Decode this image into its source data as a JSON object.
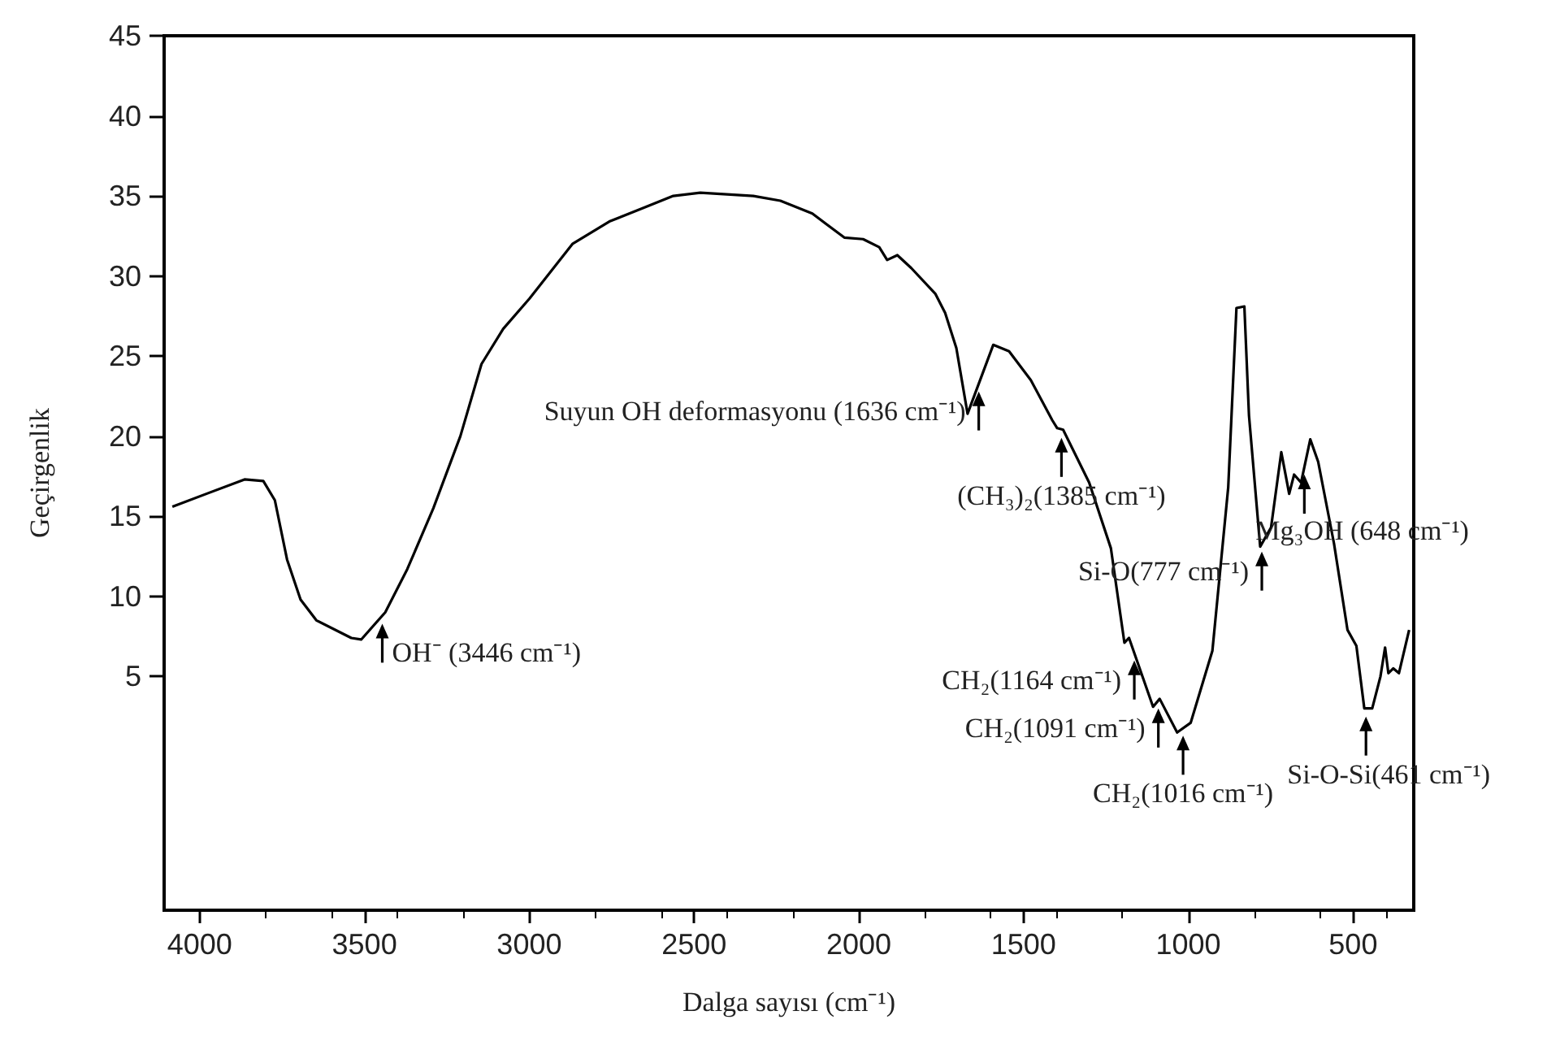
{
  "chart_data": {
    "type": "line",
    "xlabel": "Dalga sayısı (cm⁻¹)",
    "ylabel": "Geçirgenlik",
    "xlim": [
      4108,
      316
    ],
    "xticks": [
      4000,
      3500,
      3000,
      2500,
      2000,
      1500,
      1000,
      500
    ],
    "ylim": [
      -9.6,
      45
    ],
    "yticks": [
      5,
      10,
      15,
      20,
      25,
      30,
      35,
      40,
      45
    ],
    "grid": false,
    "marker": "none",
    "line_style": "solid",
    "series": [
      {
        "color": "#000000",
        "x": [
          4083,
          3864,
          3807,
          3772,
          3735,
          3694,
          3646,
          3540,
          3510,
          3437,
          3370,
          3291,
          3209,
          3145,
          3079,
          2999,
          2869,
          2757,
          2563,
          2481,
          2320,
          2238,
          2141,
          2044,
          1987,
          1938,
          1914,
          1883,
          1841,
          1768,
          1738,
          1704,
          1670,
          1592,
          1544,
          1478,
          1413,
          1398,
          1380,
          1301,
          1235,
          1194,
          1180,
          1107,
          1087,
          1034,
          993,
          927,
          879,
          854,
          830,
          816,
          782,
          749,
          718,
          694,
          679,
          658,
          630,
          606,
          558,
          517,
          490,
          466,
          442,
          417,
          403,
          393,
          378,
          361,
          330
        ],
        "values": [
          15.6,
          17.3,
          17.2,
          16.0,
          12.3,
          9.8,
          8.5,
          7.4,
          7.3,
          9.0,
          11.7,
          15.5,
          20.0,
          24.5,
          26.7,
          28.6,
          32.0,
          33.4,
          35.0,
          35.2,
          35.0,
          34.7,
          33.9,
          32.4,
          32.3,
          31.8,
          31.0,
          31.3,
          30.5,
          28.9,
          27.7,
          25.5,
          21.4,
          25.7,
          25.3,
          23.5,
          21.0,
          20.5,
          20.4,
          17.1,
          13.0,
          7.1,
          7.4,
          3.1,
          3.6,
          1.5,
          2.1,
          6.6,
          16.8,
          28.0,
          28.1,
          21.3,
          13.1,
          14.3,
          19.0,
          16.4,
          17.6,
          17.1,
          19.8,
          18.4,
          13.3,
          7.9,
          6.9,
          3.0,
          3.0,
          5.0,
          6.8,
          5.2,
          5.5,
          5.2,
          7.9
        ]
      }
    ],
    "annotations": [
      {
        "text": "OH⁻ (3446 cm⁻¹)",
        "x": 3446,
        "y": 8.8
      },
      {
        "text": "Suyun OH deformasyonu (1636 cm⁻¹)",
        "x": 1636,
        "y": 23.3
      },
      {
        "text": "(CH₃)₂(1385 cm⁻¹)",
        "x": 1385,
        "y": 20.4
      },
      {
        "text": "Si-O(777 cm⁻¹)",
        "x": 777,
        "y": 13.3
      },
      {
        "text": "Mg₃OH (648 cm⁻¹)",
        "x": 648,
        "y": 18.1
      },
      {
        "text": "CH₂(1164 cm⁻¹)",
        "x": 1164,
        "y": 6.5
      },
      {
        "text": "CH₂(1091 cm⁻¹)",
        "x": 1091,
        "y": 3.5
      },
      {
        "text": "CH₂(1016 cm⁻¹)",
        "x": 1016,
        "y": 1.8
      },
      {
        "text": "Si-O-Si(461 cm⁻¹)",
        "x": 461,
        "y": 3.0
      }
    ]
  }
}
